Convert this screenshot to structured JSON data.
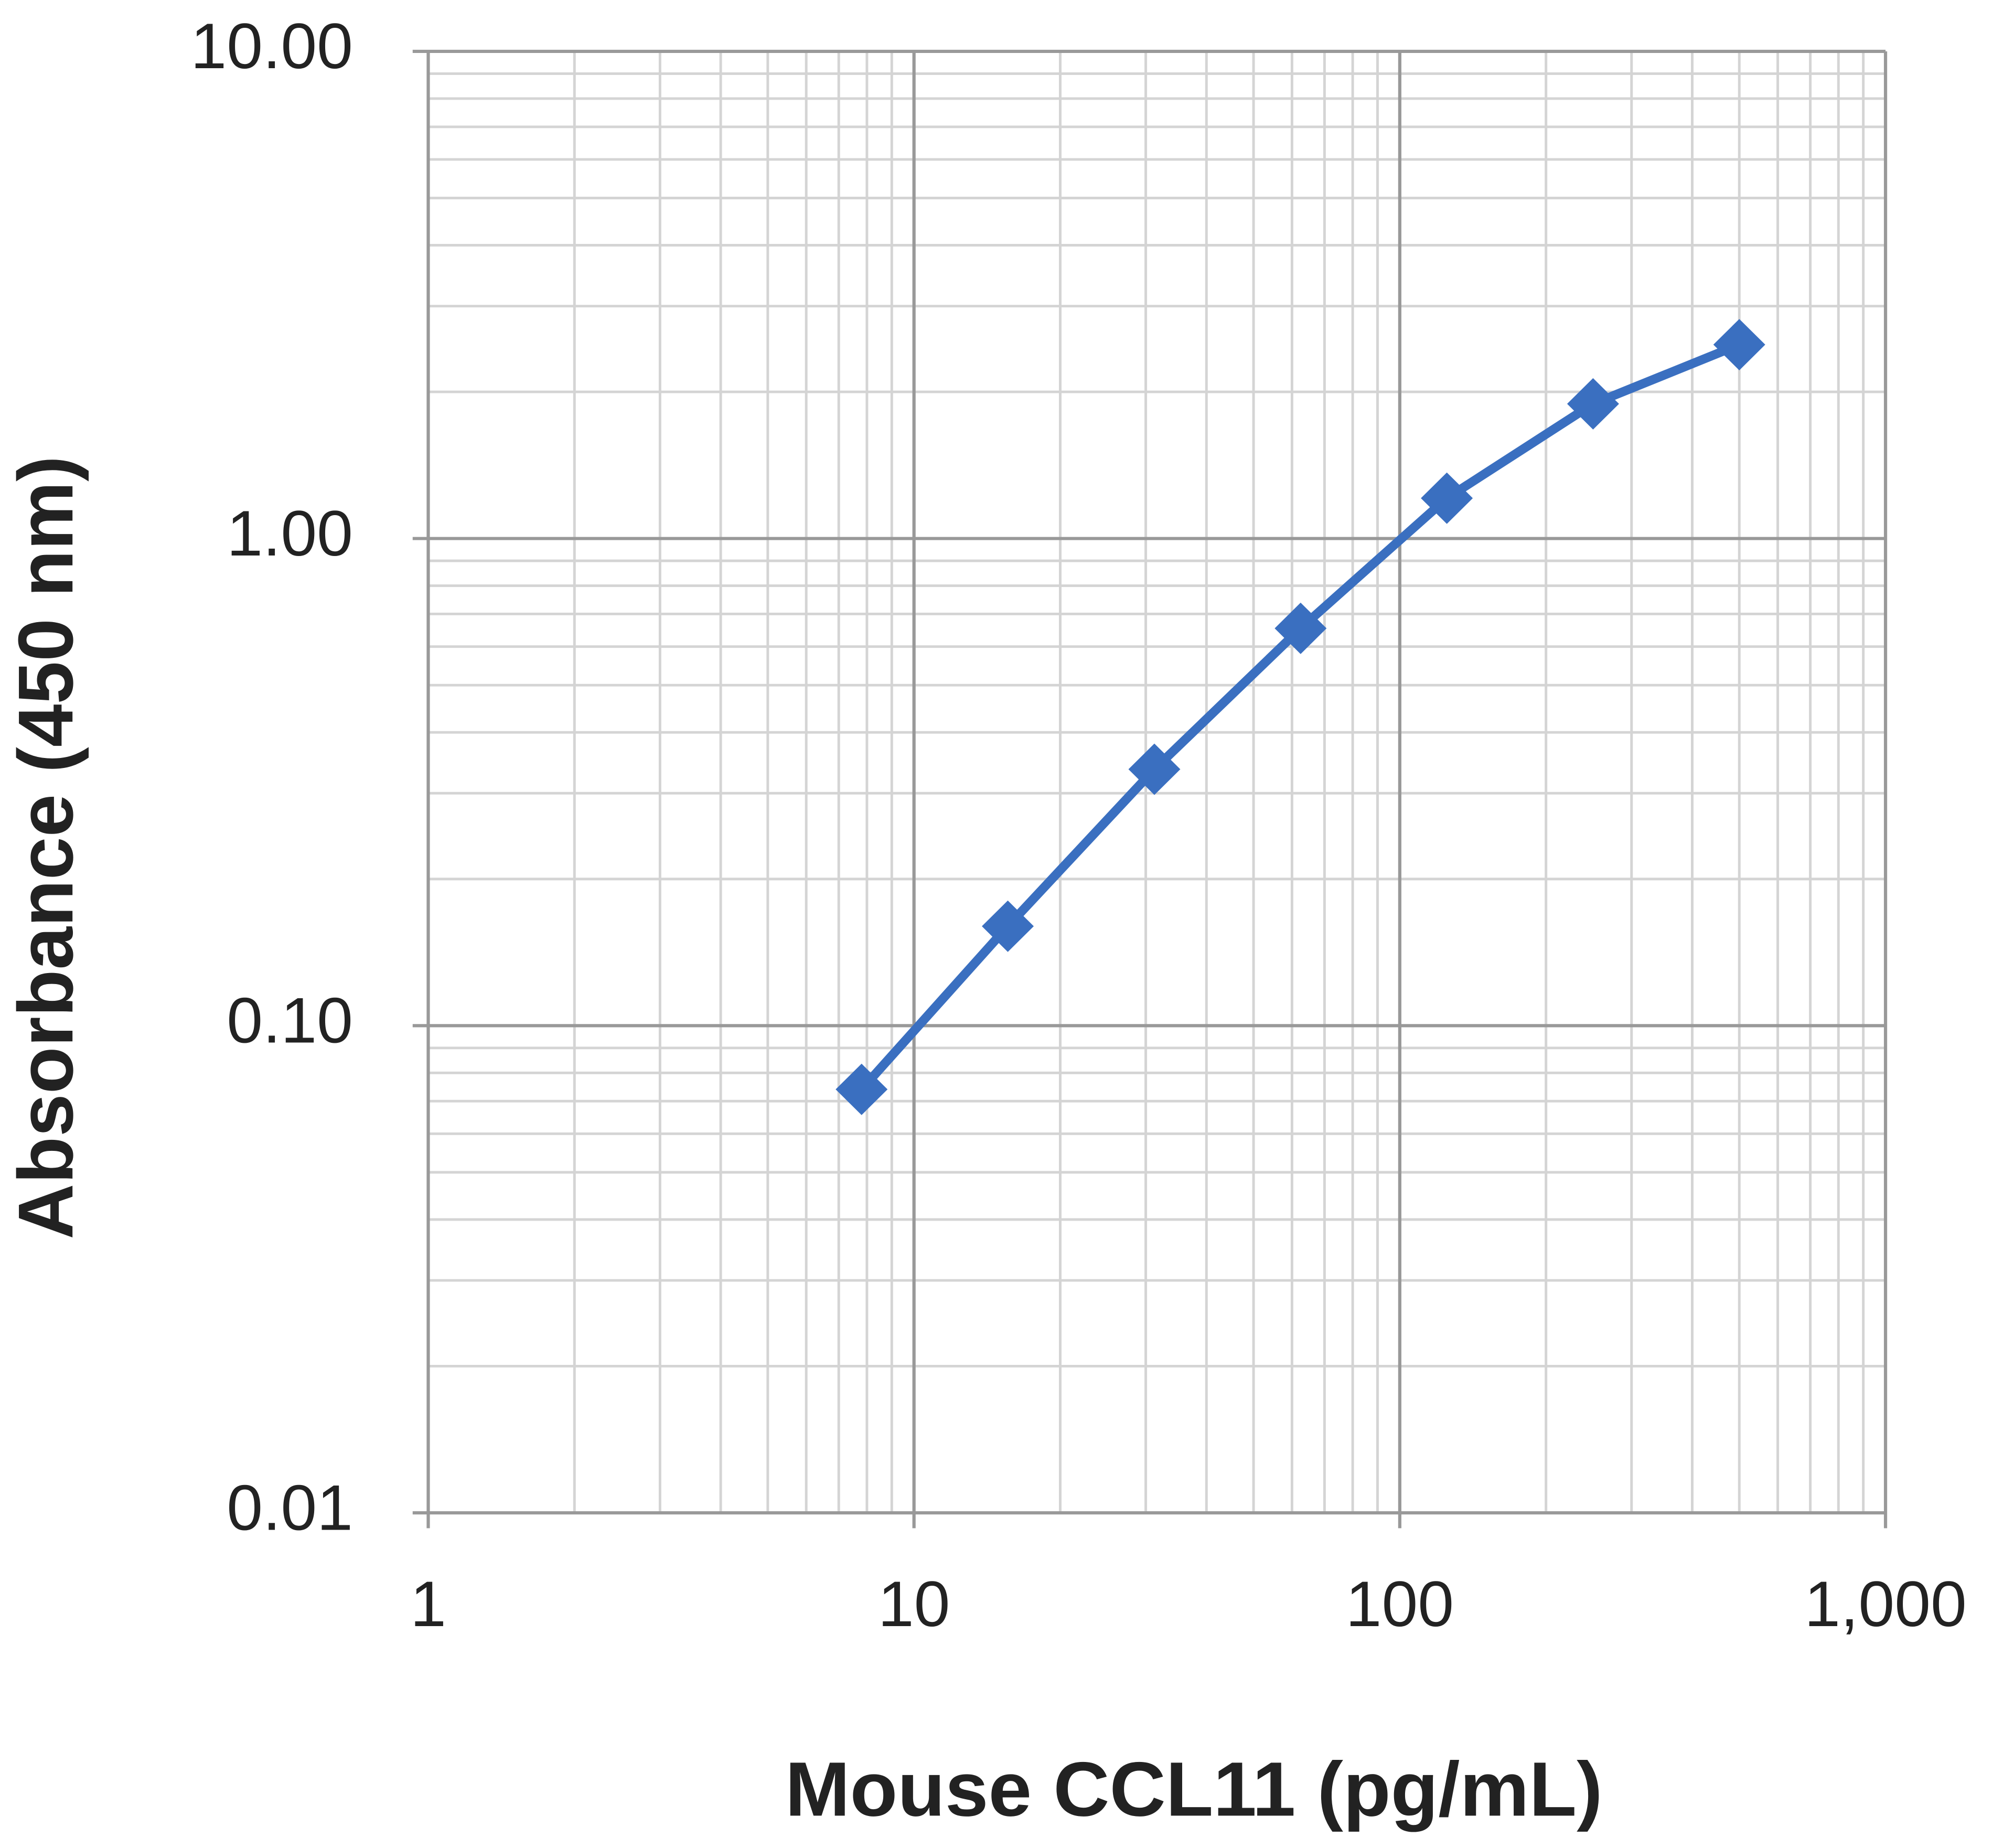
{
  "chart_data": {
    "type": "line",
    "x_label": "Mouse CCL11 (pg/mL)",
    "y_label": "Absorbance  (450 nm)",
    "x": [
      7.8,
      15.6,
      31.25,
      62.5,
      125,
      250,
      500
    ],
    "series": [
      {
        "name": "Mouse CCL11",
        "color": "#3a6fc0",
        "values": [
          0.074,
          0.16,
          0.336,
          0.654,
          1.21,
          1.89,
          2.5
        ]
      }
    ],
    "xlim": [
      1,
      1000
    ],
    "ylim": [
      0.01,
      10
    ],
    "xticks": [
      1,
      10,
      100,
      {
        "value": 1000,
        "label": "1,000"
      }
    ],
    "yticks": [
      {
        "value": 0.01,
        "label": "0.01"
      },
      {
        "value": 0.1,
        "label": "0.10"
      },
      {
        "value": 1,
        "label": "1.00"
      },
      {
        "value": 10,
        "label": "10.00"
      }
    ],
    "xscale": "log",
    "yscale": "log",
    "grid": true
  }
}
